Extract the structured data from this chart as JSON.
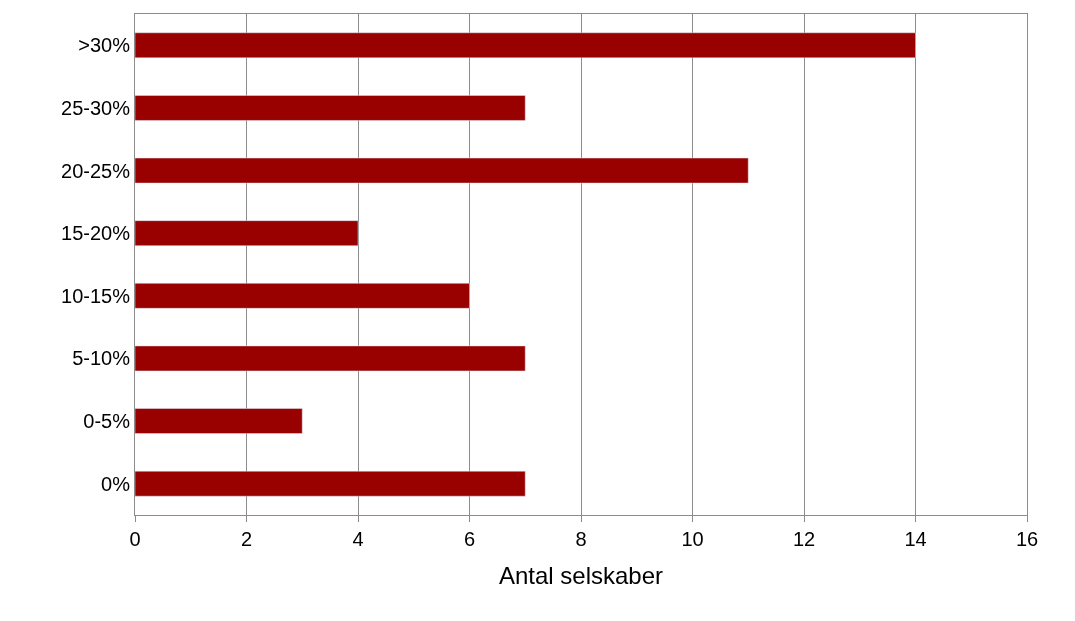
{
  "chart_data": {
    "type": "bar",
    "orientation": "horizontal",
    "xlabel": "Antal selskaber",
    "categories": [
      ">30%",
      "25-30%",
      "20-25%",
      "15-20%",
      "10-15%",
      "5-10%",
      "0-5%",
      "0%"
    ],
    "values": [
      14,
      7,
      11,
      4,
      6,
      7,
      3,
      7
    ],
    "color": "#990000",
    "xlim": [
      0,
      16
    ],
    "xticks": [
      0,
      2,
      4,
      6,
      8,
      10,
      12,
      14,
      16
    ],
    "grid": "x",
    "legend": false
  }
}
